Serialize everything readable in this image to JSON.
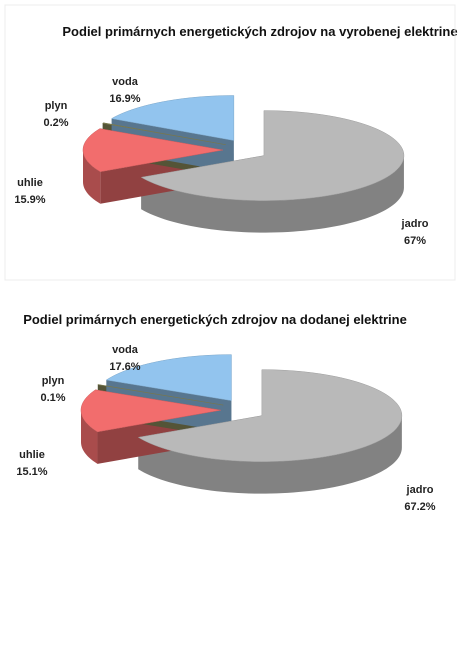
{
  "chart_data": [
    {
      "type": "pie3d",
      "title": "Podiel primárnych energetických zdrojov na vyrobenej elektrine",
      "categories": [
        "jadro",
        "uhlie",
        "plyn",
        "voda"
      ],
      "values": [
        67,
        15.9,
        0.2,
        16.9
      ],
      "value_labels": [
        "67%",
        "15.9%",
        "0.2%",
        "16.9%"
      ],
      "colors": [
        "#b9b9b9",
        "#f26d6d",
        "#8c8c5c",
        "#92c4ee"
      ]
    },
    {
      "type": "pie3d",
      "title": "Podiel primárnych energetických zdrojov na dodanej elektrine",
      "categories": [
        "jadro",
        "uhlie",
        "plyn",
        "voda"
      ],
      "values": [
        67.2,
        15.1,
        0.1,
        17.6
      ],
      "value_labels": [
        "67.2%",
        "15.1%",
        "0.1%",
        "17.6%"
      ],
      "colors": [
        "#b9b9b9",
        "#f26d6d",
        "#8c8c5c",
        "#92c4ee"
      ]
    }
  ]
}
